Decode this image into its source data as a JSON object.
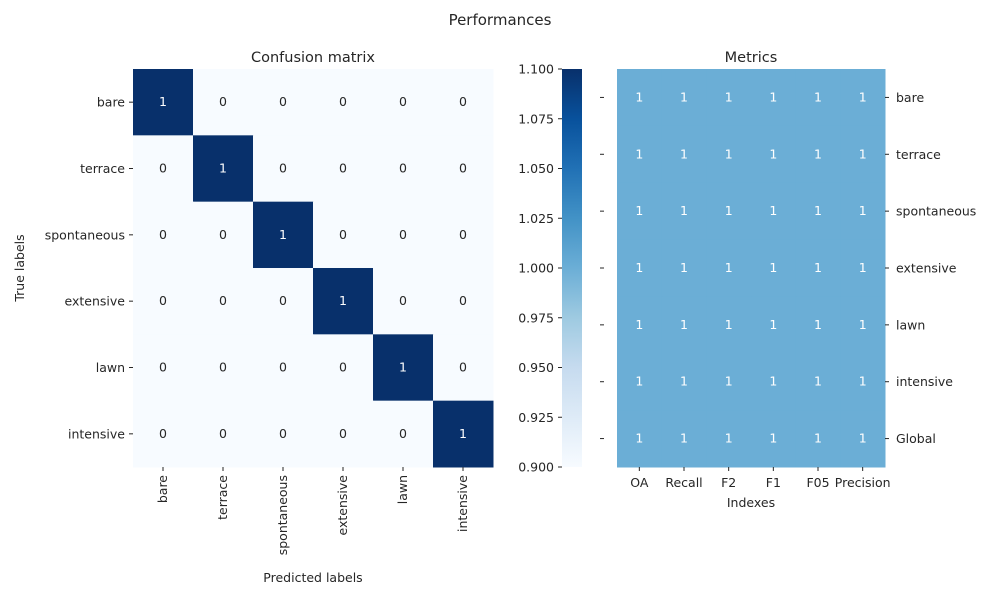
{
  "suptitle": "Performances",
  "chart_data": [
    {
      "type": "heatmap",
      "title": "Confusion matrix",
      "xlabel": "Predicted labels",
      "ylabel": "True labels",
      "x_categories": [
        "bare",
        "terrace",
        "spontaneous",
        "extensive",
        "lawn",
        "intensive"
      ],
      "y_categories": [
        "bare",
        "terrace",
        "spontaneous",
        "extensive",
        "lawn",
        "intensive"
      ],
      "values": [
        [
          1,
          0,
          0,
          0,
          0,
          0
        ],
        [
          0,
          1,
          0,
          0,
          0,
          0
        ],
        [
          0,
          0,
          1,
          0,
          0,
          0
        ],
        [
          0,
          0,
          0,
          1,
          0,
          0
        ],
        [
          0,
          0,
          0,
          0,
          1,
          0
        ],
        [
          0,
          0,
          0,
          0,
          0,
          1
        ]
      ],
      "colormap": "Blues",
      "colors": {
        "low": "#f7fbff",
        "high": "#08306b"
      }
    },
    {
      "type": "colorbar",
      "vmin": 0.9,
      "vmax": 1.1,
      "ticks": [
        "0.900",
        "0.925",
        "0.950",
        "0.975",
        "1.000",
        "1.025",
        "1.050",
        "1.075",
        "1.100"
      ]
    },
    {
      "type": "heatmap",
      "title": "Metrics",
      "xlabel": "Indexes",
      "ylabel": "",
      "x_categories": [
        "OA",
        "Recall",
        "F2",
        "F1",
        "F05",
        "Precision"
      ],
      "y_categories": [
        "bare",
        "terrace",
        "spontaneous",
        "extensive",
        "lawn",
        "intensive",
        "Global"
      ],
      "y_axis_side": "right",
      "values": [
        [
          1,
          1,
          1,
          1,
          1,
          1
        ],
        [
          1,
          1,
          1,
          1,
          1,
          1
        ],
        [
          1,
          1,
          1,
          1,
          1,
          1
        ],
        [
          1,
          1,
          1,
          1,
          1,
          1
        ],
        [
          1,
          1,
          1,
          1,
          1,
          1
        ],
        [
          1,
          1,
          1,
          1,
          1,
          1
        ],
        [
          1,
          1,
          1,
          1,
          1,
          1
        ]
      ],
      "cell_color": "#6baed6"
    }
  ]
}
